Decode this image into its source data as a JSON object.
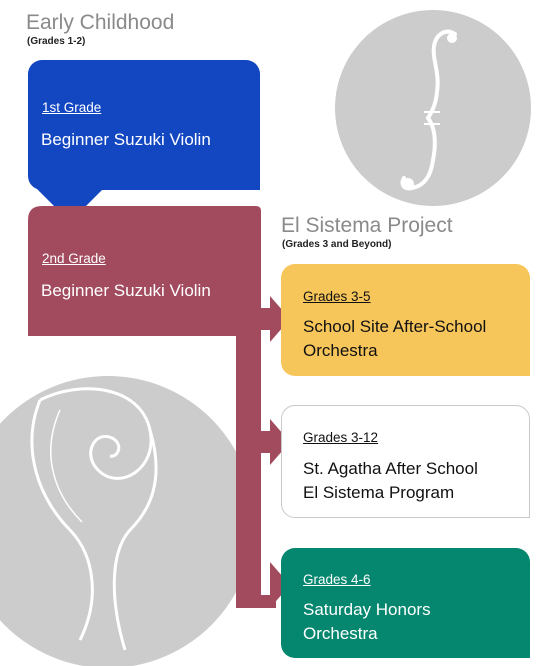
{
  "colors": {
    "blue": "#1347c2",
    "maroon": "#a24a5e",
    "yellow": "#f7c65a",
    "green": "#05866e",
    "gray_circle": "#cccccc"
  },
  "early": {
    "title": "Early Childhood",
    "subtitle": "(Grades 1-2)"
  },
  "sistema": {
    "title": "El Sistema Project",
    "subtitle": "(Grades 3 and Beyond)"
  },
  "cards": [
    {
      "grade": "1st Grade",
      "program": [
        "Beginner Suzuki Violin"
      ]
    },
    {
      "grade": "2nd Grade",
      "program": [
        "Beginner Suzuki Violin"
      ]
    },
    {
      "grade": "Grades 3-5",
      "program": [
        "School Site After-School",
        "Orchestra"
      ]
    },
    {
      "grade": "Grades 3-12",
      "program": [
        "St. Agatha After School",
        "El Sistema Program"
      ]
    },
    {
      "grade": "Grades 4-6",
      "program": [
        "Saturday Honors",
        "Orchestra"
      ]
    }
  ],
  "icons": {
    "top_right": "violin-f-hole-icon",
    "bottom_left": "violin-scroll-icon"
  }
}
